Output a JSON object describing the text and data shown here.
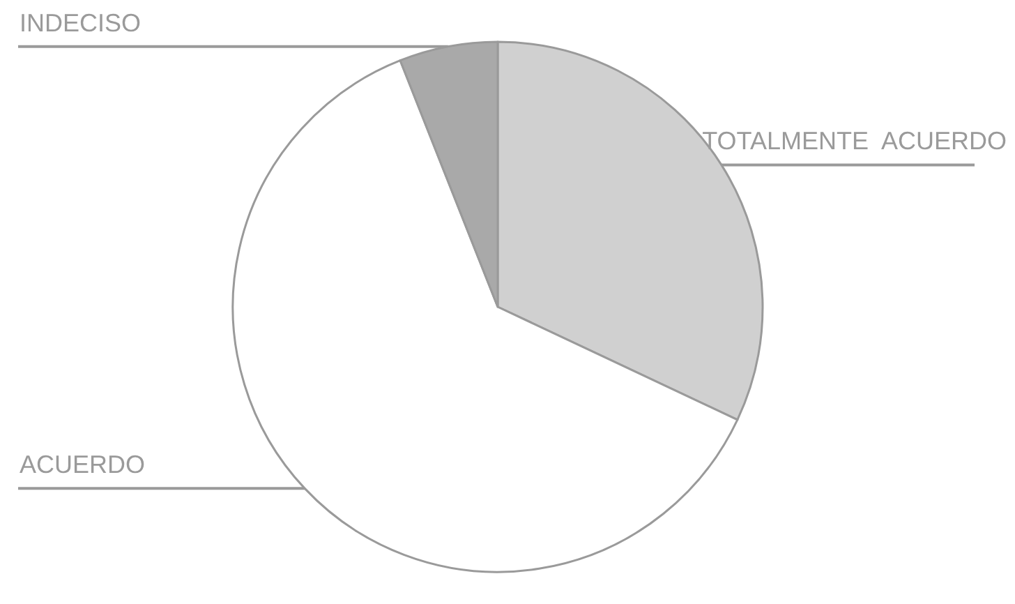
{
  "chart_data": {
    "type": "pie",
    "categories": [
      "TOTALMENTE  ACUERDO",
      "ACUERDO",
      "INDECISO"
    ],
    "values": [
      32,
      62,
      6
    ],
    "colors": [
      "#d0d0d0",
      "#ffffff",
      "#a9a9a9"
    ]
  }
}
